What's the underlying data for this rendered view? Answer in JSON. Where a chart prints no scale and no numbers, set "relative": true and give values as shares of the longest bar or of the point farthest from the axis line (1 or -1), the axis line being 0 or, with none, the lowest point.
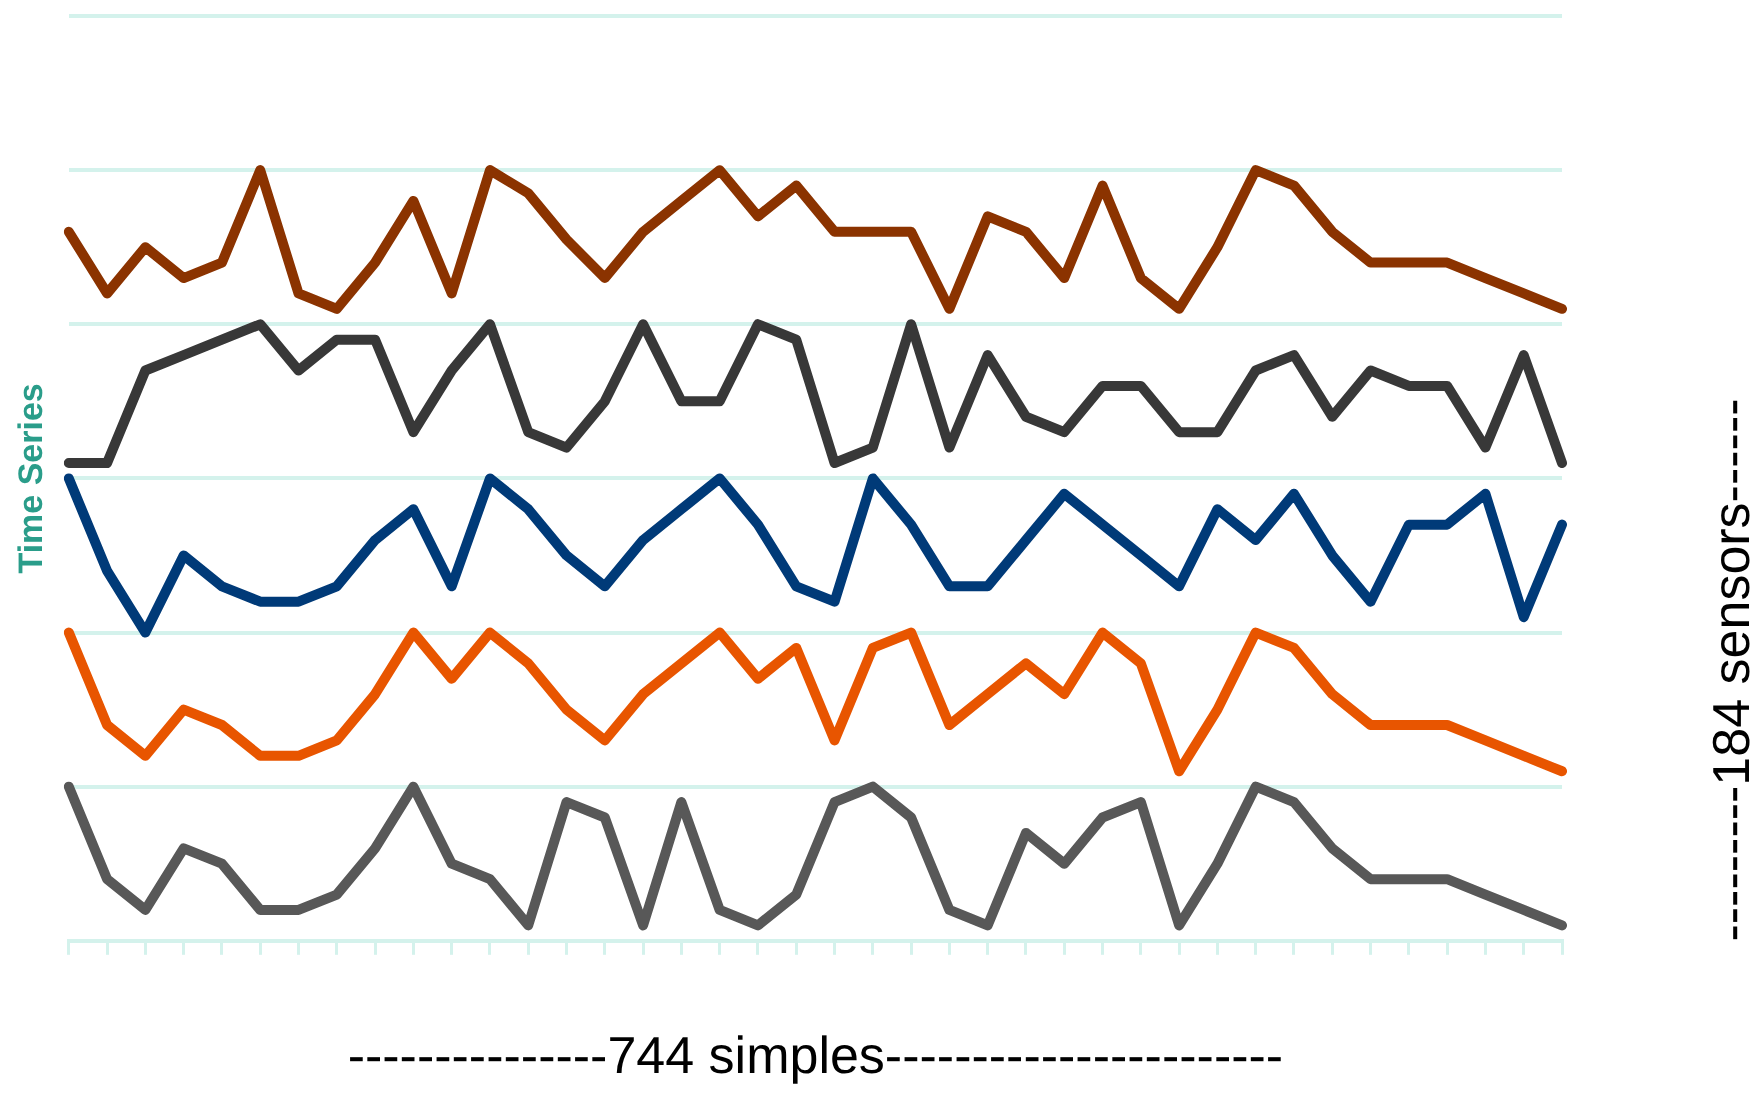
{
  "chart_data": {
    "type": "line",
    "relative": true,
    "grid": "y",
    "marker": "none",
    "line_style": "solid",
    "legend": false,
    "xlabel": "---------------744 simples-----------------------",
    "ylabel": "Time Series",
    "y2label": "---------184 sensors------",
    "categories": [
      null,
      null,
      null,
      null,
      null,
      null,
      null,
      null,
      null,
      null,
      null,
      null,
      null,
      null,
      null,
      null,
      null,
      null,
      null,
      null,
      null,
      null,
      null,
      null,
      null,
      null,
      null,
      null,
      null,
      null,
      null,
      null,
      null,
      null,
      null,
      null,
      null,
      null,
      null,
      null
    ],
    "series": [
      {
        "color": "#8b3300",
        "values": [
          0.92,
          0.84,
          0.9,
          0.86,
          0.88,
          1,
          0.84,
          0.82,
          0.88,
          0.96,
          0.84,
          1,
          0.97,
          0.91,
          0.86,
          0.92,
          0.96,
          1,
          0.94,
          0.98,
          0.92,
          0.92,
          0.92,
          0.82,
          0.94,
          0.92,
          0.86,
          0.98,
          0.86,
          0.82,
          0.9,
          1,
          0.98,
          0.92,
          0.88,
          0.88,
          0.88,
          0.86,
          0.84,
          0.82
        ]
      },
      {
        "color": "#383838",
        "values": [
          0.62,
          0.62,
          0.74,
          0.76,
          0.78,
          0.8,
          0.74,
          0.78,
          0.78,
          0.66,
          0.74,
          0.8,
          0.66,
          0.64,
          0.7,
          0.8,
          0.7,
          0.7,
          0.8,
          0.78,
          0.62,
          0.64,
          0.8,
          0.64,
          0.76,
          0.68,
          0.66,
          0.72,
          0.72,
          0.66,
          0.66,
          0.74,
          0.76,
          0.68,
          0.74,
          0.72,
          0.72,
          0.64,
          0.76,
          0.62
        ]
      },
      {
        "color": "#003a78",
        "values": [
          0.6,
          0.48,
          0.4,
          0.5,
          0.46,
          0.44,
          0.44,
          0.46,
          0.52,
          0.56,
          0.46,
          0.6,
          0.56,
          0.5,
          0.46,
          0.52,
          0.56,
          0.6,
          0.54,
          0.46,
          0.44,
          0.6,
          0.54,
          0.46,
          0.46,
          0.52,
          0.58,
          0.54,
          0.5,
          0.46,
          0.56,
          0.52,
          0.58,
          0.5,
          0.44,
          0.54,
          0.54,
          0.58,
          0.42,
          0.54
        ]
      },
      {
        "color": "#e85500",
        "values": [
          0.4,
          0.28,
          0.24,
          0.3,
          0.28,
          0.24,
          0.24,
          0.26,
          0.32,
          0.4,
          0.34,
          0.4,
          0.36,
          0.3,
          0.26,
          0.32,
          0.36,
          0.4,
          0.34,
          0.38,
          0.26,
          0.38,
          0.4,
          0.28,
          0.32,
          0.36,
          0.32,
          0.4,
          0.36,
          0.22,
          0.3,
          0.4,
          0.38,
          0.32,
          0.28,
          0.28,
          0.28,
          0.26,
          0.24,
          0.22
        ]
      },
      {
        "color": "#585858",
        "values": [
          0.2,
          0.08,
          0.04,
          0.12,
          0.1,
          0.04,
          0.04,
          0.06,
          0.12,
          0.2,
          0.1,
          0.08,
          0.02,
          0.18,
          0.16,
          0.02,
          0.18,
          0.04,
          0.02,
          0.06,
          0.18,
          0.2,
          0.16,
          0.04,
          0.02,
          0.14,
          0.1,
          0.16,
          0.18,
          0.02,
          0.1,
          0.2,
          0.18,
          0.12,
          0.08,
          0.08,
          0.08,
          0.06,
          0.04,
          0.02
        ]
      }
    ]
  }
}
